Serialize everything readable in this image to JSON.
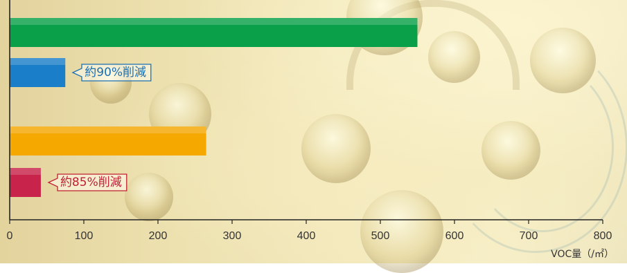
{
  "chart_data": {
    "type": "bar",
    "orientation": "horizontal",
    "categories": [
      "",
      "",
      "",
      ""
    ],
    "values": [
      550,
      75,
      265,
      42
    ],
    "colors": [
      "#0aa049",
      "#1a7fc8",
      "#f5a800",
      "#c8234a"
    ],
    "xlabel": "VOC量（/㎡）",
    "xlim": [
      0,
      800
    ],
    "xticks": [
      0,
      100,
      200,
      300,
      400,
      500,
      600,
      700,
      800
    ],
    "grid": false,
    "annotations": [
      {
        "bar_index": 1,
        "text": "約90%削減",
        "color": "#1a6fb3"
      },
      {
        "bar_index": 3,
        "text": "約85%削減",
        "color": "#c01f32"
      }
    ]
  }
}
